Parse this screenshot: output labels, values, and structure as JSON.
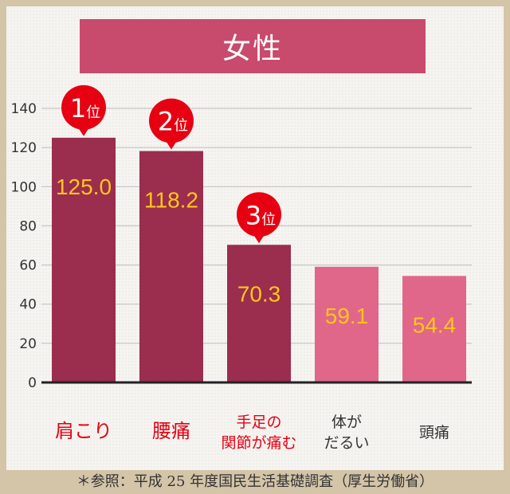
{
  "title": "女性",
  "footnote": "＊参照：平成 25 年度国民生活基礎調査（厚生労働省）",
  "chart_data": {
    "type": "bar",
    "title": "女性",
    "xlabel": "",
    "ylabel": "",
    "ylim": [
      0,
      140
    ],
    "yticks": [
      0,
      20,
      40,
      60,
      80,
      100,
      120,
      140
    ],
    "grid": true,
    "categories": [
      [
        "肩こり"
      ],
      [
        "腰痛"
      ],
      [
        "手足の",
        "関節が痛む"
      ],
      [
        "体が",
        "だるい"
      ],
      [
        "頭痛"
      ]
    ],
    "values": [
      125.0,
      118.2,
      70.3,
      59.1,
      54.4
    ],
    "value_labels": [
      "125.0",
      "118.2",
      "70.3",
      "59.1",
      "54.4"
    ],
    "rank_badges": [
      {
        "num": "1",
        "suffix": "位"
      },
      {
        "num": "2",
        "suffix": "位"
      },
      {
        "num": "3",
        "suffix": "位"
      }
    ],
    "colors": {
      "top_bar": "#9b2d4e",
      "other_bar": "#e0678a",
      "value_text": "#ffc61a",
      "top_category_text": "#e60012",
      "other_category_text": "#333333",
      "badge": "#e60012"
    }
  }
}
